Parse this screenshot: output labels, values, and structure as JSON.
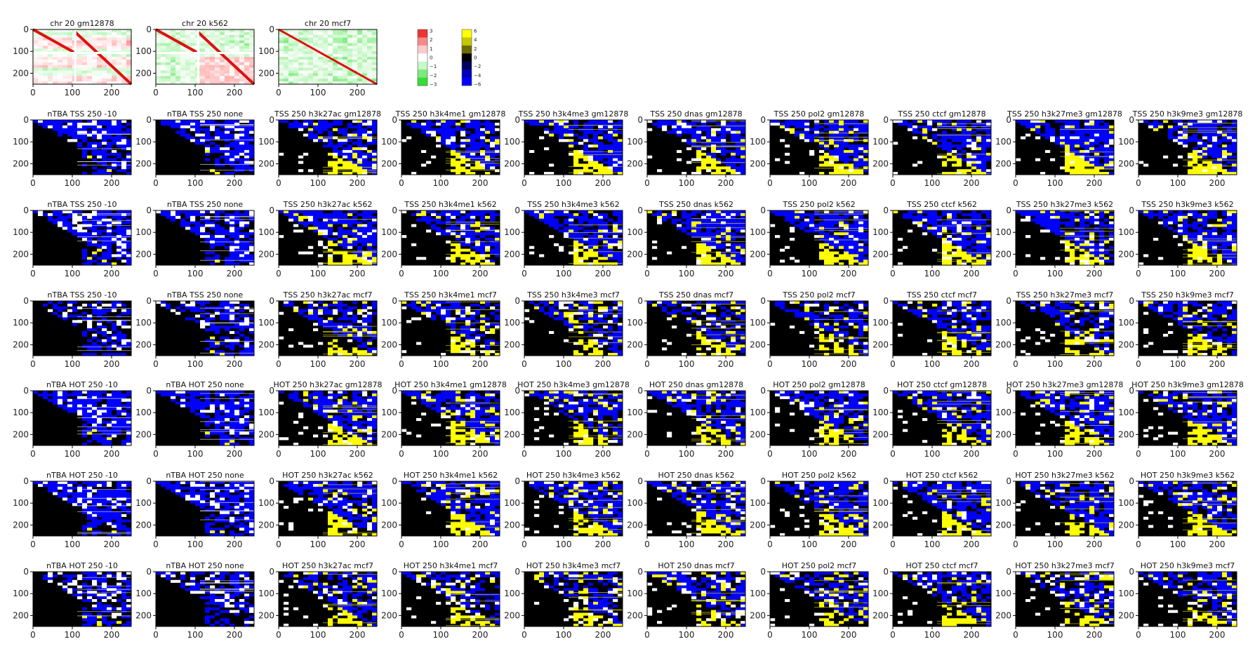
{
  "chart_data": {
    "type": "heatmap",
    "axis_ticks": [
      "0",
      "100",
      "200"
    ],
    "xlim": [
      0,
      250
    ],
    "ylim": [
      0,
      250
    ],
    "top_row": [
      {
        "title": "chr 20 gm12878",
        "scheme": "hic",
        "seed": 3
      },
      {
        "title": "chr 20 k562",
        "scheme": "hic",
        "seed": 7
      },
      {
        "title": "chr 20 mcf7",
        "scheme": "hic",
        "seed": 11
      }
    ],
    "colorbars": [
      {
        "name": "hic",
        "ticks": [
          "3",
          "2",
          "1",
          "0",
          "−1",
          "−2",
          "−3"
        ],
        "colors": [
          "#ee3333",
          "#f58a8a",
          "#fbcaca",
          "#ffffff",
          "#c8f7c8",
          "#7fe87f",
          "#33dd33"
        ]
      },
      {
        "name": "ntba",
        "ticks": [
          "6",
          "4",
          "2",
          "0",
          "−2",
          "−4",
          "−6"
        ],
        "colors": [
          "#ffff00",
          "#c6c600",
          "#6b6b00",
          "#000000",
          "#00005e",
          "#0000b8",
          "#0000ff"
        ]
      }
    ],
    "grid_rows": [
      [
        "nTBA TSS 250 -10",
        "nTBA TSS 250 none",
        "TSS 250 h3k27ac gm12878",
        "TSS 250 h3k4me1 gm12878",
        "TSS 250 h3k4me3 gm12878",
        "TSS 250 dnas gm12878",
        "TSS 250 pol2 gm12878",
        "TSS 250 ctcf gm12878",
        "TSS 250 h3k27me3 gm12878",
        "TSS 250 h3k9me3 gm12878"
      ],
      [
        "nTBA TSS 250 -10",
        "nTBA TSS 250 none",
        "TSS 250 h3k27ac k562",
        "TSS 250 h3k4me1 k562",
        "TSS 250 h3k4me3 k562",
        "TSS 250 dnas k562",
        "TSS 250 pol2 k562",
        "TSS 250 ctcf k562",
        "TSS 250 h3k27me3 k562",
        "TSS 250 h3k9me3 k562"
      ],
      [
        "nTBA TSS 250 -10",
        "nTBA TSS 250 none",
        "TSS 250 h3k27ac mcf7",
        "TSS 250 h3k4me1 mcf7",
        "TSS 250 h3k4me3 mcf7",
        "TSS 250 dnas mcf7",
        "TSS 250 pol2 mcf7",
        "TSS 250 ctcf mcf7",
        "TSS 250 h3k27me3 mcf7",
        "TSS 250 h3k9me3 mcf7"
      ],
      [
        "nTBA HOT 250 -10",
        "nTBA HOT 250 none",
        "HOT 250 h3k27ac gm12878",
        "HOT 250 h3k4me1 gm12878",
        "HOT 250 h3k4me3 gm12878",
        "HOT 250 dnas gm12878",
        "HOT 250 pol2 gm12878",
        "HOT 250 ctcf gm12878",
        "HOT 250 h3k27me3 gm12878",
        "HOT 250 h3k9me3 gm12878"
      ],
      [
        "nTBA HOT 250 -10",
        "nTBA HOT 250 none",
        "HOT 250 h3k27ac k562",
        "HOT 250 h3k4me1 k562",
        "HOT 250 h3k4me3 k562",
        "HOT 250 dnas k562",
        "HOT 250 pol2 k562",
        "HOT 250 ctcf k562",
        "HOT 250 h3k27me3 k562",
        "HOT 250 h3k9me3 k562"
      ],
      [
        "nTBA HOT 250 -10",
        "nTBA HOT 250 none",
        "HOT 250 h3k27ac mcf7",
        "HOT 250 h3k4me1 mcf7",
        "HOT 250 h3k4me3 mcf7",
        "HOT 250 dnas mcf7",
        "HOT 250 pol2 mcf7",
        "HOT 250 ctcf mcf7",
        "HOT 250 h3k27me3 mcf7",
        "HOT 250 h3k9me3 mcf7"
      ]
    ],
    "grid_scheme": "ntba"
  }
}
